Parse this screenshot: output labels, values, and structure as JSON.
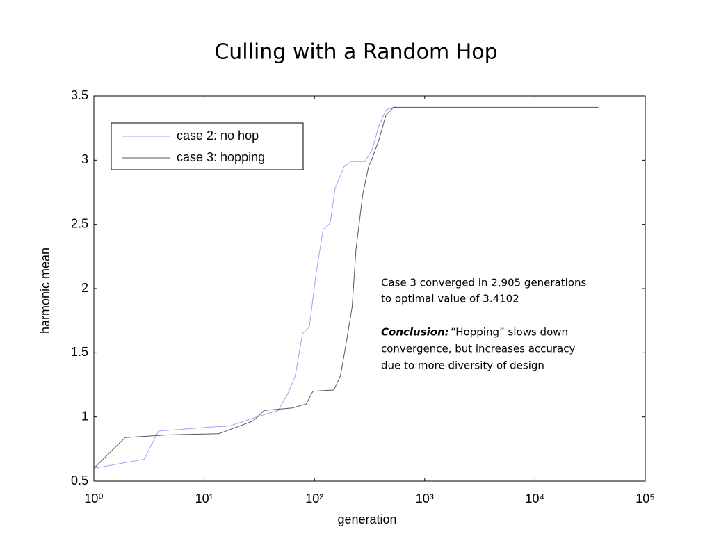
{
  "chart_data": {
    "type": "line",
    "title": "Culling with a Random Hop",
    "xlabel": "generation",
    "ylabel": "harmonic mean",
    "xscale": "log",
    "xlim": [
      1,
      100000
    ],
    "ylim": [
      0.5,
      3.5
    ],
    "xticks": [
      {
        "value": 1,
        "label": "10⁰"
      },
      {
        "value": 10,
        "label": "10¹"
      },
      {
        "value": 100,
        "label": "10²"
      },
      {
        "value": 1000,
        "label": "10³"
      },
      {
        "value": 10000,
        "label": "10⁴"
      },
      {
        "value": 100000,
        "label": "10⁵"
      }
    ],
    "yticks": [
      0.5,
      1,
      1.5,
      2,
      2.5,
      3,
      3.5
    ],
    "legend": "upper left",
    "series": [
      {
        "name": "case 2: no hop",
        "color": "#9aa7f0",
        "x": [
          1,
          2.85,
          3.86,
          11,
          17,
          30,
          47,
          58,
          67,
          78,
          90,
          104,
          120,
          139,
          154,
          186,
          215,
          287,
          333,
          385,
          445,
          555,
          37500
        ],
        "values": [
          0.6,
          0.67,
          0.89,
          0.92,
          0.93,
          1.0,
          1.05,
          1.19,
          1.32,
          1.65,
          1.7,
          2.13,
          2.46,
          2.51,
          2.78,
          2.95,
          2.99,
          2.99,
          3.08,
          3.27,
          3.39,
          3.42,
          3.42
        ]
      },
      {
        "name": "case 3: hopping",
        "color": "#555555",
        "x": [
          1,
          1.92,
          4.6,
          13.6,
          28,
          35,
          63,
          84,
          97,
          150,
          172,
          191,
          220,
          238,
          274,
          310,
          333,
          385,
          445,
          520,
          37500
        ],
        "values": [
          0.6,
          0.84,
          0.86,
          0.87,
          0.97,
          1.05,
          1.07,
          1.1,
          1.2,
          1.21,
          1.32,
          1.54,
          1.86,
          2.3,
          2.73,
          2.95,
          3.01,
          3.16,
          3.35,
          3.41,
          3.41
        ]
      }
    ],
    "annotation": [
      "Case 3 converged in 2,905 generations",
      "to optimal value of 3.4102"
    ],
    "conclusion_label": "Conclusion:",
    "conclusion": [
      "“Hopping” slows down",
      "convergence, but increases accuracy",
      "due to more diversity of design"
    ]
  }
}
